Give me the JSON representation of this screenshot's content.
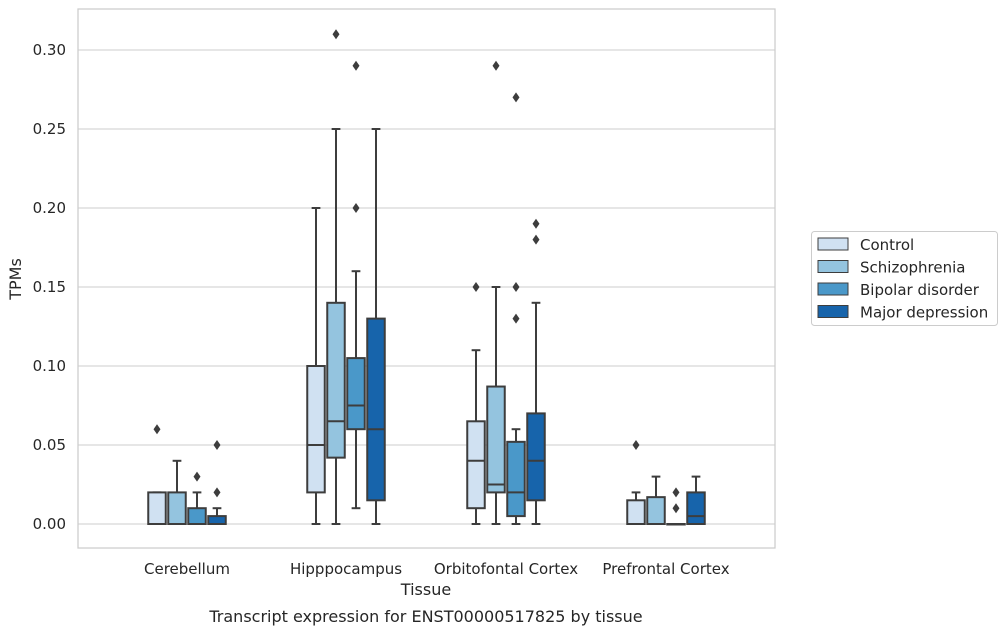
{
  "caption": "Transcript expression for ENST00000517825 by tissue",
  "chart_data": {
    "type": "box",
    "title": "",
    "xlabel": "Tissue",
    "ylabel": "TPMs",
    "ylim": [
      -0.015,
      0.325
    ],
    "yticks": [
      "0.00",
      "0.05",
      "0.10",
      "0.15",
      "0.20",
      "0.25",
      "0.30"
    ],
    "ytick_values": [
      0,
      0.05,
      0.1,
      0.15,
      0.2,
      0.25,
      0.3
    ],
    "grid": "horizontal",
    "legend_position": "right",
    "categories": [
      "Cerebellum",
      "Hipppocampus",
      "Orbitofontal Cortex",
      "Prefrontal Cortex"
    ],
    "series": [
      {
        "name": "Control",
        "color": "#d0e1f2",
        "boxes": [
          {
            "min": 0,
            "q1": 0,
            "median": 0,
            "q3": 0.02,
            "max": 0.02,
            "outliers": [
              0.06
            ]
          },
          {
            "min": 0,
            "q1": 0.02,
            "median": 0.05,
            "q3": 0.1,
            "max": 0.2,
            "outliers": []
          },
          {
            "min": 0,
            "q1": 0.01,
            "median": 0.04,
            "q3": 0.065,
            "max": 0.11,
            "outliers": [
              0.15
            ]
          },
          {
            "min": 0,
            "q1": 0,
            "median": 0,
            "q3": 0.015,
            "max": 0.02,
            "outliers": [
              0.05
            ]
          }
        ]
      },
      {
        "name": "Schizophrenia",
        "color": "#94c4df",
        "boxes": [
          {
            "min": 0,
            "q1": 0,
            "median": 0,
            "q3": 0.02,
            "max": 0.04,
            "outliers": []
          },
          {
            "min": 0,
            "q1": 0.042,
            "median": 0.065,
            "q3": 0.14,
            "max": 0.25,
            "outliers": [
              0.31
            ]
          },
          {
            "min": 0,
            "q1": 0.02,
            "median": 0.025,
            "q3": 0.087,
            "max": 0.15,
            "outliers": [
              0.29
            ]
          },
          {
            "min": 0,
            "q1": 0,
            "median": 0,
            "q3": 0.017,
            "max": 0.03,
            "outliers": []
          }
        ]
      },
      {
        "name": "Bipolar disorder",
        "color": "#4a98c9",
        "boxes": [
          {
            "min": 0,
            "q1": 0,
            "median": 0,
            "q3": 0.01,
            "max": 0.02,
            "outliers": [
              0.03
            ]
          },
          {
            "min": 0.01,
            "q1": 0.06,
            "median": 0.075,
            "q3": 0.105,
            "max": 0.16,
            "outliers": [
              0.2,
              0.29
            ]
          },
          {
            "min": 0,
            "q1": 0.005,
            "median": 0.02,
            "q3": 0.052,
            "max": 0.06,
            "outliers": [
              0.13,
              0.15,
              0.27
            ]
          },
          {
            "min": 0,
            "q1": 0,
            "median": 0,
            "q3": 0,
            "max": 0,
            "outliers": [
              0.01,
              0.02
            ]
          }
        ]
      },
      {
        "name": "Major depression",
        "color": "#1764ab",
        "boxes": [
          {
            "min": 0,
            "q1": 0,
            "median": 0,
            "q3": 0.005,
            "max": 0.01,
            "outliers": [
              0.02,
              0.05
            ]
          },
          {
            "min": 0,
            "q1": 0.015,
            "median": 0.06,
            "q3": 0.13,
            "max": 0.25,
            "outliers": []
          },
          {
            "min": 0,
            "q1": 0.015,
            "median": 0.04,
            "q3": 0.07,
            "max": 0.14,
            "outliers": [
              0.18,
              0.19
            ]
          },
          {
            "min": 0,
            "q1": 0,
            "median": 0.005,
            "q3": 0.02,
            "max": 0.03,
            "outliers": []
          }
        ]
      }
    ]
  }
}
